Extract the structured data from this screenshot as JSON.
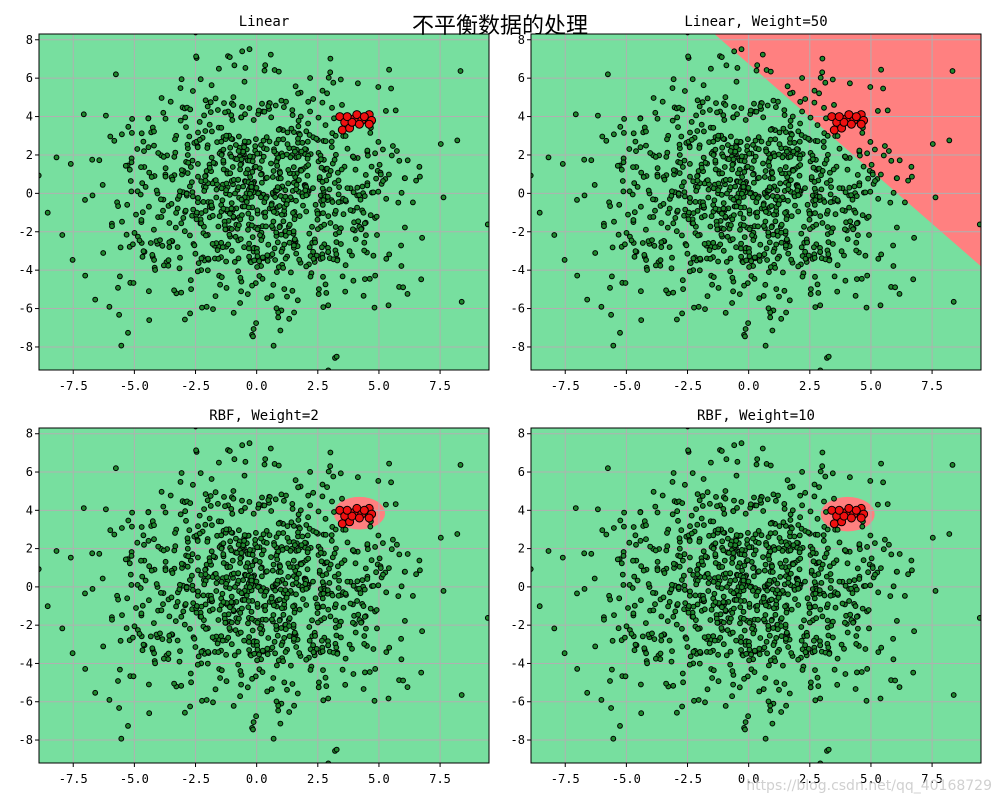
{
  "figure": {
    "title": "不平衡数据的处理",
    "watermark": "https://blog.csdn.net/qq_40168729",
    "colors": {
      "majority_region": "#77df9f",
      "minority_region": "#ff8080",
      "majority_point": "#1f8a2e",
      "minority_point": "#ee1010",
      "point_edge": "#000000",
      "grid": "#b0b0b0"
    }
  },
  "chart_data": [
    {
      "type": "scatter",
      "title": "Linear",
      "xlim": [
        -8.9,
        9.5
      ],
      "ylim": [
        -9.2,
        8.3
      ],
      "xticks": [
        "-7.5",
        "-5.0",
        "-2.5",
        "0.0",
        "2.5",
        "5.0",
        "7.5"
      ],
      "yticks": [
        "-8",
        "-6",
        "-4",
        "-2",
        "0",
        "2",
        "4",
        "6",
        "8"
      ],
      "grid": true,
      "decision_region": {
        "kind": "none"
      }
    },
    {
      "type": "scatter",
      "title": "Linear, Weight=50",
      "xlim": [
        -8.9,
        9.5
      ],
      "ylim": [
        -9.2,
        8.3
      ],
      "xticks": [
        "-7.5",
        "-5.0",
        "-2.5",
        "0.0",
        "2.5",
        "5.0",
        "7.5"
      ],
      "yticks": [
        "-8",
        "-6",
        "-4",
        "-2",
        "0",
        "2",
        "4",
        "6",
        "8"
      ],
      "grid": true,
      "decision_region": {
        "kind": "line",
        "p1": [
          -1.4,
          8.3
        ],
        "p2": [
          9.5,
          -3.8
        ]
      }
    },
    {
      "type": "scatter",
      "title": "RBF, Weight=2",
      "xlim": [
        -8.9,
        9.5
      ],
      "ylim": [
        -9.2,
        8.3
      ],
      "xticks": [
        "-7.5",
        "-5.0",
        "-2.5",
        "0.0",
        "2.5",
        "5.0",
        "7.5"
      ],
      "yticks": [
        "-8",
        "-6",
        "-4",
        "-2",
        "0",
        "2",
        "4",
        "6",
        "8"
      ],
      "grid": true,
      "decision_region": {
        "kind": "ellipse",
        "center": [
          4.2,
          3.85
        ],
        "rx": 1.05,
        "ry": 0.85
      }
    },
    {
      "type": "scatter",
      "title": "RBF, Weight=10",
      "xlim": [
        -8.9,
        9.5
      ],
      "ylim": [
        -9.2,
        8.3
      ],
      "xticks": [
        "-7.5",
        "-5.0",
        "-2.5",
        "0.0",
        "2.5",
        "5.0",
        "7.5"
      ],
      "yticks": [
        "-8",
        "-6",
        "-4",
        "-2",
        "0",
        "2",
        "4",
        "6",
        "8"
      ],
      "grid": true,
      "decision_region": {
        "kind": "ellipse",
        "center": [
          4.05,
          3.8
        ],
        "rx": 1.1,
        "ry": 0.9
      }
    }
  ],
  "points": {
    "majority_count": 1000,
    "majority_center": [
      0.0,
      0.0
    ],
    "majority_std": 3.0,
    "minority": [
      [
        3.4,
        4.0
      ],
      [
        3.6,
        3.7
      ],
      [
        3.5,
        3.3
      ],
      [
        3.8,
        3.4
      ],
      [
        4.0,
        3.9
      ],
      [
        4.1,
        4.1
      ],
      [
        3.9,
        3.7
      ],
      [
        4.3,
        3.8
      ],
      [
        4.6,
        4.1
      ],
      [
        4.7,
        3.8
      ],
      [
        4.6,
        3.6
      ],
      [
        4.2,
        3.6
      ],
      [
        3.7,
        4.0
      ],
      [
        4.4,
        4.0
      ]
    ]
  }
}
